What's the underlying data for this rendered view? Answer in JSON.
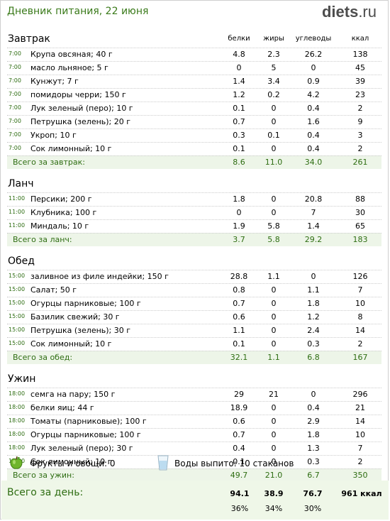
{
  "title": "Дневник питания, 22 июня",
  "logo": {
    "name": "diets",
    "tld": ".ru"
  },
  "columns": [
    "белки",
    "жиры",
    "углеводы",
    "ккал"
  ],
  "meals": [
    {
      "title": "Завтрак",
      "rows": [
        {
          "time": "7:00",
          "name": "Крупа овсяная; 40 г",
          "p": "4.8",
          "f": "2.3",
          "c": "26.2",
          "kcal": "138"
        },
        {
          "time": "7:00",
          "name": "масло льняное; 5 г",
          "p": "0",
          "f": "5",
          "c": "0",
          "kcal": "45"
        },
        {
          "time": "7:00",
          "name": "Кунжут; 7 г",
          "p": "1.4",
          "f": "3.4",
          "c": "0.9",
          "kcal": "39"
        },
        {
          "time": "7:00",
          "name": "помидоры черри; 150 г",
          "p": "1.2",
          "f": "0.2",
          "c": "4.2",
          "kcal": "23"
        },
        {
          "time": "7:00",
          "name": "Лук зеленый (перо); 10 г",
          "p": "0.1",
          "f": "0",
          "c": "0.4",
          "kcal": "2"
        },
        {
          "time": "7:00",
          "name": "Петрушка (зелень); 20 г",
          "p": "0.7",
          "f": "0",
          "c": "1.6",
          "kcal": "9"
        },
        {
          "time": "7:00",
          "name": "Укроп; 10 г",
          "p": "0.3",
          "f": "0.1",
          "c": "0.4",
          "kcal": "3"
        },
        {
          "time": "7:00",
          "name": "Сок лимонный; 10 г",
          "p": "0.1",
          "f": "0",
          "c": "0.4",
          "kcal": "2"
        }
      ],
      "total": {
        "label": "Всего за завтрак:",
        "p": "8.6",
        "f": "11.0",
        "c": "34.0",
        "kcal": "261"
      }
    },
    {
      "title": "Ланч",
      "rows": [
        {
          "time": "11:00",
          "name": "Персики; 200 г",
          "p": "1.8",
          "f": "0",
          "c": "20.8",
          "kcal": "88"
        },
        {
          "time": "11:00",
          "name": "Клубника; 100 г",
          "p": "0",
          "f": "0",
          "c": "7",
          "kcal": "30"
        },
        {
          "time": "11:00",
          "name": "Миндаль; 10 г",
          "p": "1.9",
          "f": "5.8",
          "c": "1.4",
          "kcal": "65"
        }
      ],
      "total": {
        "label": "Всего за ланч:",
        "p": "3.7",
        "f": "5.8",
        "c": "29.2",
        "kcal": "183"
      }
    },
    {
      "title": "Обед",
      "rows": [
        {
          "time": "15:00",
          "name": "заливное из филе индейки; 150 г",
          "p": "28.8",
          "f": "1.1",
          "c": "0",
          "kcal": "126"
        },
        {
          "time": "15:00",
          "name": "Салат; 50 г",
          "p": "0.8",
          "f": "0",
          "c": "1.1",
          "kcal": "7"
        },
        {
          "time": "15:00",
          "name": "Огурцы парниковые; 100 г",
          "p": "0.7",
          "f": "0",
          "c": "1.8",
          "kcal": "10"
        },
        {
          "time": "15:00",
          "name": "Базилик свежий; 30 г",
          "p": "0.6",
          "f": "0",
          "c": "1.2",
          "kcal": "8"
        },
        {
          "time": "15:00",
          "name": "Петрушка (зелень); 30 г",
          "p": "1.1",
          "f": "0",
          "c": "2.4",
          "kcal": "14"
        },
        {
          "time": "15:00",
          "name": "Сок лимонный; 10 г",
          "p": "0.1",
          "f": "0",
          "c": "0.3",
          "kcal": "2"
        }
      ],
      "total": {
        "label": "Всего за обед:",
        "p": "32.1",
        "f": "1.1",
        "c": "6.8",
        "kcal": "167"
      }
    },
    {
      "title": "Ужин",
      "rows": [
        {
          "time": "18:00",
          "name": "семга на пару; 150 г",
          "p": "29",
          "f": "21",
          "c": "0",
          "kcal": "296"
        },
        {
          "time": "18:00",
          "name": "белки яиц; 44 г",
          "p": "18.9",
          "f": "0",
          "c": "0.4",
          "kcal": "21"
        },
        {
          "time": "18:00",
          "name": "Томаты (парниковые); 100 г",
          "p": "0.6",
          "f": "0",
          "c": "2.9",
          "kcal": "14"
        },
        {
          "time": "18:00",
          "name": "Огурцы парниковые; 100 г",
          "p": "0.7",
          "f": "0",
          "c": "1.8",
          "kcal": "10"
        },
        {
          "time": "18:00",
          "name": "Лук зеленый (перо); 30 г",
          "p": "0.4",
          "f": "0",
          "c": "1.3",
          "kcal": "7"
        },
        {
          "time": "18:00",
          "name": "Сок лимонный; 10 г",
          "p": "0.1",
          "f": "0",
          "c": "0.3",
          "kcal": "2"
        }
      ],
      "total": {
        "label": "Всего за ужин:",
        "p": "49.7",
        "f": "21.0",
        "c": "6.7",
        "kcal": "350"
      }
    }
  ],
  "extras": {
    "fruit_icon": "apple-icon",
    "fruit_label": "Фрукты и овощи: 0",
    "water_icon": "water-glass-icon",
    "water_label": "Воды выпито: 10 стаканов"
  },
  "day": {
    "label": "Всего за день:",
    "p": "94.1",
    "f": "38.9",
    "c": "76.7",
    "kcal": "961 ккал",
    "p_pct": "36%",
    "f_pct": "34%",
    "c_pct": "30%"
  },
  "colors": {
    "accent_green": "#2e6d12",
    "total_bg": "#edf5e8"
  }
}
